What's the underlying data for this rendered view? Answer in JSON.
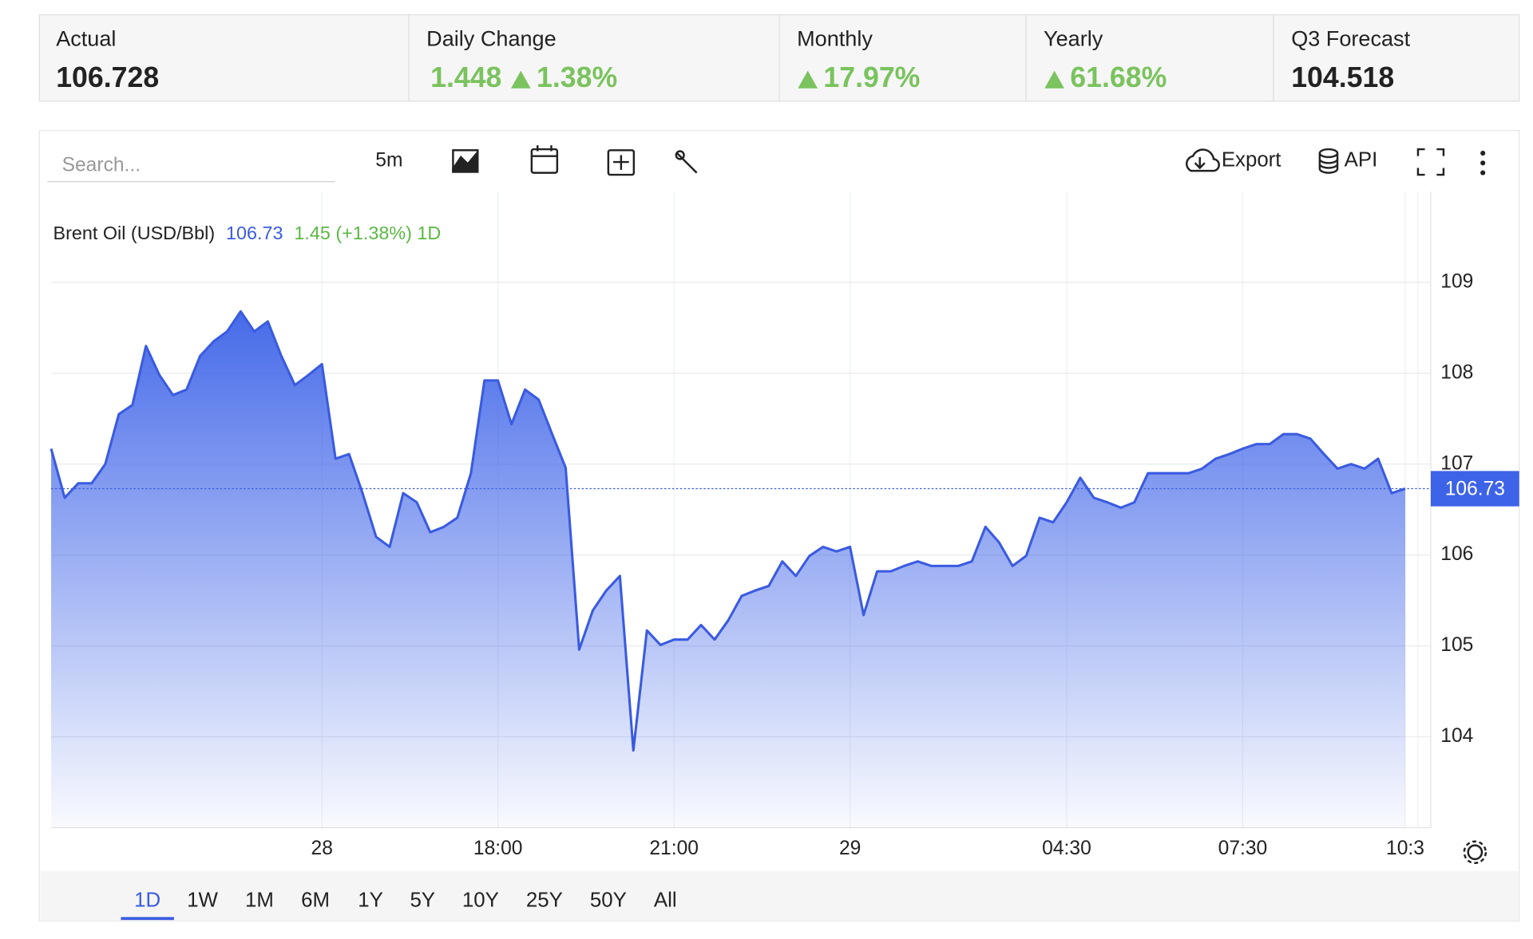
{
  "header": {
    "stats": [
      {
        "label": "Actual",
        "value": "106.728"
      },
      {
        "label": "Daily Change",
        "value": "1.448",
        "change": "1.38%"
      },
      {
        "label": "Monthly",
        "change": "17.97%"
      },
      {
        "label": "Yearly",
        "change": "61.68%"
      },
      {
        "label": "Q3 Forecast",
        "value": "104.518"
      }
    ]
  },
  "toolbar": {
    "search_placeholder": "Search...",
    "interval": "5m",
    "export": "Export",
    "api": "API"
  },
  "ranges": {
    "items": [
      "1D",
      "1W",
      "1M",
      "6M",
      "1Y",
      "5Y",
      "10Y",
      "25Y",
      "50Y",
      "All"
    ],
    "active": "1D"
  },
  "chart_data": {
    "type": "area",
    "legend_price": "106.73",
    "legend_change": "1.45 (+1.38%) 1D",
    "categories": [
      null,
      null,
      null,
      null,
      null,
      null,
      null,
      null,
      null,
      null,
      null,
      null,
      null,
      null,
      null,
      null,
      null,
      null,
      null,
      null,
      "28",
      null,
      null,
      null,
      null,
      null,
      null,
      null,
      null,
      null,
      null,
      null,
      null,
      "18:00",
      null,
      null,
      null,
      null,
      null,
      null,
      null,
      null,
      null,
      null,
      null,
      null,
      "21:00",
      null,
      null,
      null,
      null,
      null,
      null,
      null,
      null,
      null,
      null,
      null,
      null,
      "29",
      null,
      null,
      null,
      null,
      null,
      null,
      null,
      null,
      null,
      null,
      null,
      null,
      null,
      null,
      null,
      "04:30",
      null,
      null,
      null,
      null,
      null,
      null,
      null,
      null,
      null,
      null,
      null,
      null,
      "07:30",
      null,
      null,
      null,
      null,
      null,
      null,
      null,
      null,
      null,
      null,
      null,
      "10:3"
    ],
    "series": [
      {
        "name": "Brent Oil (USD/Bbl)",
        "color": "#3a5be0",
        "values": [
          107.17,
          106.63,
          106.79,
          106.79,
          107.0,
          107.55,
          107.65,
          108.3,
          107.98,
          107.76,
          107.82,
          108.19,
          108.35,
          108.46,
          108.68,
          108.46,
          108.57,
          108.19,
          107.87,
          107.98,
          108.1,
          107.06,
          107.11,
          106.68,
          106.2,
          106.09,
          106.68,
          106.58,
          106.25,
          106.31,
          106.41,
          106.9,
          107.92,
          107.92,
          107.44,
          107.82,
          107.71,
          107.33,
          106.96,
          104.96,
          105.39,
          105.61,
          105.77,
          103.85,
          105.17,
          105.01,
          105.07,
          105.07,
          105.23,
          105.07,
          105.28,
          105.55,
          105.61,
          105.66,
          105.93,
          105.77,
          105.99,
          106.09,
          106.04,
          106.09,
          105.34,
          105.82,
          105.82,
          105.88,
          105.93,
          105.88,
          105.88,
          105.88,
          105.93,
          106.31,
          106.14,
          105.88,
          105.99,
          106.41,
          106.36,
          106.58,
          106.85,
          106.63,
          106.58,
          106.52,
          106.58,
          106.9,
          106.9,
          106.9,
          106.9,
          106.95,
          107.06,
          107.11,
          107.17,
          107.22,
          107.22,
          107.33,
          107.33,
          107.28,
          107.11,
          106.95,
          107.0,
          106.95,
          107.06,
          106.68,
          106.73
        ]
      }
    ],
    "ylim": [
      103,
      110
    ],
    "yticks": [
      104,
      105,
      106,
      107,
      108,
      109
    ],
    "grid": true
  }
}
